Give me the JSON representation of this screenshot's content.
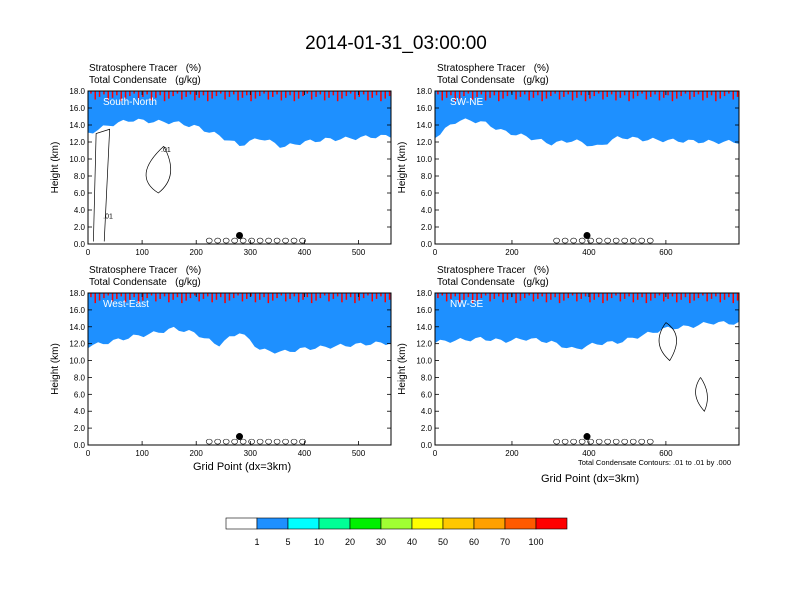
{
  "title": "2014-01-31_03:00:00",
  "panel_header": {
    "line1": "Stratosphere Tracer   (%)",
    "line2": "Total Condensate   (g/kg)"
  },
  "contour_note": "Total Condensate Contours: .01 to .01 by .000",
  "colorbar": {
    "colors": [
      "#ffffff",
      "#1e90ff",
      "#00ffff",
      "#00ff96",
      "#00f000",
      "#a0ff33",
      "#ffff00",
      "#ffc800",
      "#ffa000",
      "#ff5a00",
      "#ff0000"
    ],
    "labels": [
      "1",
      "5",
      "10",
      "20",
      "30",
      "40",
      "50",
      "60",
      "70",
      "100"
    ]
  },
  "chart_data": [
    {
      "type": "heatmap",
      "name": "South-North",
      "xlabel": "",
      "ylabel": "Height (km)",
      "x_ticks": [
        "0",
        "100",
        "200",
        "300",
        "400",
        "500"
      ],
      "x_range": [
        0,
        560
      ],
      "y_ticks": [
        "0.0",
        "2.0",
        "4.0",
        "6.0",
        "8.0",
        "10.0",
        "12.0",
        "14.0",
        "16.0",
        "18.0"
      ],
      "ylim": [
        0,
        18
      ],
      "marker_x": 280,
      "contour_labels": [
        ".01",
        ".01"
      ],
      "tracer_profile": {
        "x": [
          0,
          40,
          80,
          120,
          160,
          200,
          240,
          280,
          320,
          360,
          400,
          440,
          480,
          520,
          560
        ],
        "base_km": [
          13.0,
          14.0,
          14.6,
          14.4,
          14.3,
          13.8,
          12.8,
          11.6,
          12.5,
          11.4,
          12.0,
          12.3,
          12.4,
          12.6,
          12.7
        ]
      }
    },
    {
      "type": "heatmap",
      "name": "SW-NE",
      "xlabel": "",
      "ylabel": "Height (km)",
      "x_ticks": [
        "0",
        "200",
        "400",
        "600"
      ],
      "x_range": [
        0,
        790
      ],
      "y_ticks": [
        "0.0",
        "2.0",
        "4.0",
        "6.0",
        "8.0",
        "10.0",
        "12.0",
        "14.0",
        "16.0",
        "18.0"
      ],
      "ylim": [
        0,
        18
      ],
      "marker_x": 395,
      "tracer_profile": {
        "x": [
          0,
          60,
          120,
          180,
          240,
          300,
          360,
          420,
          480,
          540,
          600,
          660,
          720,
          790
        ],
        "base_km": [
          12.6,
          14.6,
          14.4,
          13.2,
          12.6,
          11.8,
          12.2,
          11.4,
          12.6,
          12.3,
          12.2,
          12.1,
          12.0,
          12.0
        ]
      }
    },
    {
      "type": "heatmap",
      "name": "West-East",
      "xlabel": "Grid Point (dx=3km)",
      "ylabel": "Height (km)",
      "x_ticks": [
        "0",
        "100",
        "200",
        "300",
        "400",
        "500"
      ],
      "x_range": [
        0,
        560
      ],
      "y_ticks": [
        "0.0",
        "2.0",
        "4.0",
        "6.0",
        "8.0",
        "10.0",
        "12.0",
        "14.0",
        "16.0",
        "18.0"
      ],
      "ylim": [
        0,
        18
      ],
      "marker_x": 280,
      "tracer_profile": {
        "x": [
          0,
          40,
          80,
          120,
          160,
          200,
          240,
          280,
          320,
          360,
          400,
          440,
          480,
          520,
          560
        ],
        "base_km": [
          11.7,
          12.2,
          12.8,
          13.2,
          13.8,
          13.2,
          11.8,
          13.4,
          11.2,
          11.0,
          11.4,
          11.6,
          11.8,
          12.0,
          12.1
        ]
      }
    },
    {
      "type": "heatmap",
      "name": "NW-SE",
      "xlabel": "Grid Point (dx=3km)",
      "ylabel": "Height (km)",
      "x_ticks": [
        "0",
        "200",
        "400",
        "600"
      ],
      "x_range": [
        0,
        790
      ],
      "y_ticks": [
        "0.0",
        "2.0",
        "4.0",
        "6.0",
        "8.0",
        "10.0",
        "12.0",
        "14.0",
        "16.0",
        "18.0"
      ],
      "ylim": [
        0,
        18
      ],
      "marker_x": 395,
      "tracer_profile": {
        "x": [
          0,
          60,
          120,
          180,
          240,
          300,
          360,
          420,
          480,
          540,
          600,
          660,
          720,
          790
        ],
        "base_km": [
          12.2,
          12.4,
          12.6,
          12.3,
          12.6,
          12.2,
          11.3,
          12.0,
          12.2,
          13.0,
          13.8,
          14.0,
          14.5,
          14.4
        ]
      }
    }
  ]
}
